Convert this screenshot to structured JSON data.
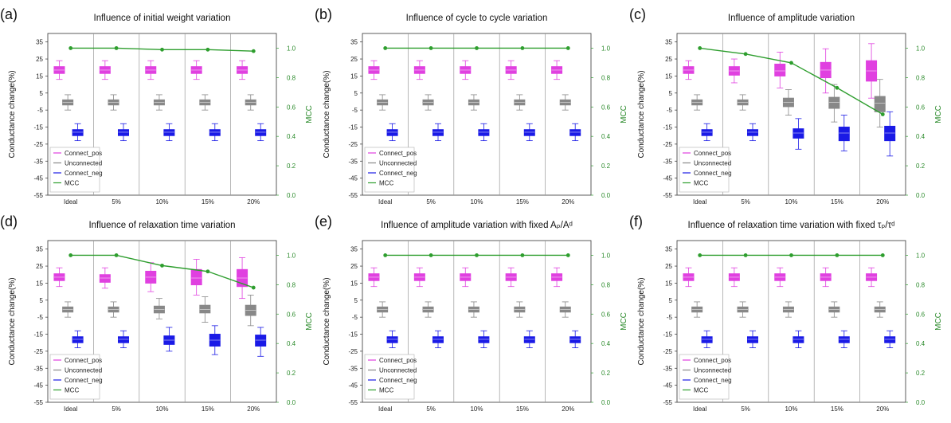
{
  "colors": {
    "connect_pos": "#e040e0",
    "unconnected": "#888888",
    "connect_neg": "#1a1ae6",
    "mcc": "#2e9e2e",
    "axis": "#333333",
    "mcc_axis": "#2e9e2e"
  },
  "shared": {
    "y_axis_label": "Conductance change(%)",
    "y2_axis_label": "MCC",
    "categories": [
      "Ideal",
      "5%",
      "10%",
      "15%",
      "20%"
    ],
    "legend": [
      "Connect_pos",
      "Unconnected",
      "Connect_neg",
      "MCC"
    ],
    "yticks": [
      "35",
      "25",
      "15",
      "5",
      "-5",
      "-15",
      "-25",
      "-35",
      "-45",
      "-55"
    ],
    "y2ticks": [
      "1.0",
      "0.8",
      "0.6",
      "0.4",
      "0.2",
      "0.0"
    ]
  },
  "chart_data": [
    {
      "type": "box",
      "panel_label": "(a)",
      "title": "Influence of initial weight variation",
      "ylim": [
        -55,
        40
      ],
      "y2lim": [
        0,
        1.1
      ],
      "legend_placement": "lower-left",
      "mcc": [
        1.0,
        1.0,
        0.99,
        0.99,
        0.98
      ],
      "series": [
        {
          "name": "Connect_pos",
          "boxes": [
            {
              "q1": 16.5,
              "q3": 20.5,
              "med": 18.5,
              "lo": 13,
              "hi": 24
            },
            {
              "q1": 16.5,
              "q3": 20.5,
              "med": 18.5,
              "lo": 13,
              "hi": 24
            },
            {
              "q1": 16.5,
              "q3": 20.5,
              "med": 18.5,
              "lo": 13,
              "hi": 24
            },
            {
              "q1": 16.5,
              "q3": 20.5,
              "med": 18.5,
              "lo": 13,
              "hi": 24
            },
            {
              "q1": 16.5,
              "q3": 20.5,
              "med": 18.5,
              "lo": 13,
              "hi": 24
            }
          ]
        },
        {
          "name": "Unconnected",
          "boxes": [
            {
              "q1": -2,
              "q3": 1,
              "med": -0.5,
              "lo": -5,
              "hi": 4
            },
            {
              "q1": -2,
              "q3": 1,
              "med": -0.5,
              "lo": -5,
              "hi": 4
            },
            {
              "q1": -2,
              "q3": 1,
              "med": -0.5,
              "lo": -5,
              "hi": 4
            },
            {
              "q1": -2,
              "q3": 1,
              "med": -0.5,
              "lo": -5,
              "hi": 4
            },
            {
              "q1": -2,
              "q3": 1,
              "med": -0.5,
              "lo": -5,
              "hi": 4
            }
          ]
        },
        {
          "name": "Connect_neg",
          "boxes": [
            {
              "q1": -20,
              "q3": -16.5,
              "med": -18,
              "lo": -23,
              "hi": -13
            },
            {
              "q1": -20,
              "q3": -16.5,
              "med": -18,
              "lo": -23,
              "hi": -13
            },
            {
              "q1": -20,
              "q3": -16.5,
              "med": -18,
              "lo": -23,
              "hi": -13
            },
            {
              "q1": -20,
              "q3": -16.5,
              "med": -18,
              "lo": -23,
              "hi": -13
            },
            {
              "q1": -20,
              "q3": -16.5,
              "med": -18,
              "lo": -23,
              "hi": -13
            }
          ]
        }
      ]
    },
    {
      "type": "box",
      "panel_label": "(b)",
      "title": "Influence of cycle to cycle variation",
      "ylim": [
        -55,
        40
      ],
      "y2lim": [
        0,
        1.1
      ],
      "legend_placement": "lower-left",
      "mcc": [
        1.0,
        1.0,
        1.0,
        1.0,
        1.0
      ],
      "series": [
        {
          "name": "Connect_pos",
          "boxes": [
            {
              "q1": 16.5,
              "q3": 20.5,
              "med": 18.5,
              "lo": 13,
              "hi": 24
            },
            {
              "q1": 16.5,
              "q3": 20.5,
              "med": 18.5,
              "lo": 13,
              "hi": 24
            },
            {
              "q1": 16.5,
              "q3": 20.5,
              "med": 18.5,
              "lo": 13,
              "hi": 24
            },
            {
              "q1": 16.5,
              "q3": 20.5,
              "med": 18.5,
              "lo": 13,
              "hi": 24
            },
            {
              "q1": 16.5,
              "q3": 20.5,
              "med": 18.5,
              "lo": 13,
              "hi": 24
            }
          ]
        },
        {
          "name": "Unconnected",
          "boxes": [
            {
              "q1": -2,
              "q3": 1,
              "med": -0.5,
              "lo": -5,
              "hi": 4
            },
            {
              "q1": -2,
              "q3": 1,
              "med": -0.5,
              "lo": -5,
              "hi": 4
            },
            {
              "q1": -2,
              "q3": 1,
              "med": -0.5,
              "lo": -5,
              "hi": 4
            },
            {
              "q1": -2,
              "q3": 1,
              "med": -0.5,
              "lo": -5,
              "hi": 4
            },
            {
              "q1": -2,
              "q3": 1,
              "med": -0.5,
              "lo": -5,
              "hi": 4
            }
          ]
        },
        {
          "name": "Connect_neg",
          "boxes": [
            {
              "q1": -20,
              "q3": -16.5,
              "med": -18,
              "lo": -23,
              "hi": -13
            },
            {
              "q1": -20,
              "q3": -16.5,
              "med": -18,
              "lo": -23,
              "hi": -13
            },
            {
              "q1": -20,
              "q3": -16.5,
              "med": -18,
              "lo": -23,
              "hi": -13
            },
            {
              "q1": -20,
              "q3": -16.5,
              "med": -18,
              "lo": -23,
              "hi": -13
            },
            {
              "q1": -20,
              "q3": -16.5,
              "med": -18,
              "lo": -23,
              "hi": -13
            }
          ]
        }
      ]
    },
    {
      "type": "box",
      "panel_label": "(c)",
      "title": "Influence of amplitude variation",
      "ylim": [
        -55,
        40
      ],
      "y2lim": [
        0,
        1.1
      ],
      "legend_placement": "lower-left",
      "mcc": [
        1.0,
        0.96,
        0.9,
        0.73,
        0.55
      ],
      "series": [
        {
          "name": "Connect_pos",
          "boxes": [
            {
              "q1": 16.5,
              "q3": 20.5,
              "med": 18.5,
              "lo": 13,
              "hi": 24
            },
            {
              "q1": 15.5,
              "q3": 20.5,
              "med": 18,
              "lo": 11,
              "hi": 25
            },
            {
              "q1": 15,
              "q3": 22,
              "med": 18,
              "lo": 8,
              "hi": 29
            },
            {
              "q1": 14,
              "q3": 23,
              "med": 18.5,
              "lo": 5,
              "hi": 31
            },
            {
              "q1": 12,
              "q3": 24,
              "med": 18,
              "lo": 2,
              "hi": 34
            }
          ]
        },
        {
          "name": "Unconnected",
          "boxes": [
            {
              "q1": -2,
              "q3": 1,
              "med": -0.5,
              "lo": -5,
              "hi": 4
            },
            {
              "q1": -2,
              "q3": 1,
              "med": -0.5,
              "lo": -5,
              "hi": 4
            },
            {
              "q1": -3,
              "q3": 2,
              "med": -0.5,
              "lo": -8,
              "hi": 7
            },
            {
              "q1": -4,
              "q3": 2.5,
              "med": -0.5,
              "lo": -12,
              "hi": 10
            },
            {
              "q1": -6,
              "q3": 3,
              "med": -1,
              "lo": -15,
              "hi": 13
            }
          ]
        },
        {
          "name": "Connect_neg",
          "boxes": [
            {
              "q1": -20,
              "q3": -16.5,
              "med": -18,
              "lo": -23,
              "hi": -13
            },
            {
              "q1": -20,
              "q3": -16.5,
              "med": -18,
              "lo": -23,
              "hi": -13
            },
            {
              "q1": -21.5,
              "q3": -16,
              "med": -18.5,
              "lo": -28,
              "hi": -10
            },
            {
              "q1": -23,
              "q3": -15,
              "med": -18.5,
              "lo": -29,
              "hi": -8
            },
            {
              "q1": -23,
              "q3": -14.5,
              "med": -18.5,
              "lo": -32,
              "hi": -6
            }
          ]
        }
      ]
    },
    {
      "type": "box",
      "panel_label": "(d)",
      "title": "Influence of relaxation time variation",
      "ylim": [
        -55,
        40
      ],
      "y2lim": [
        0,
        1.1
      ],
      "legend_placement": "lower-left",
      "mcc": [
        1.0,
        1.0,
        0.93,
        0.89,
        0.78
      ],
      "series": [
        {
          "name": "Connect_pos",
          "boxes": [
            {
              "q1": 16.5,
              "q3": 20.5,
              "med": 18.5,
              "lo": 13,
              "hi": 24
            },
            {
              "q1": 15.5,
              "q3": 20,
              "med": 18,
              "lo": 12,
              "hi": 24
            },
            {
              "q1": 15,
              "q3": 22,
              "med": 18.5,
              "lo": 10,
              "hi": 27
            },
            {
              "q1": 14,
              "q3": 23,
              "med": 18,
              "lo": 8,
              "hi": 29
            },
            {
              "q1": 13,
              "q3": 23,
              "med": 18,
              "lo": 6,
              "hi": 30
            }
          ]
        },
        {
          "name": "Unconnected",
          "boxes": [
            {
              "q1": -2,
              "q3": 1,
              "med": -0.5,
              "lo": -5,
              "hi": 4
            },
            {
              "q1": -2,
              "q3": 1,
              "med": -0.5,
              "lo": -5,
              "hi": 4
            },
            {
              "q1": -2.5,
              "q3": 1.5,
              "med": -0.5,
              "lo": -6,
              "hi": 6
            },
            {
              "q1": -2.5,
              "q3": 2,
              "med": -0.5,
              "lo": -8,
              "hi": 7
            },
            {
              "q1": -4,
              "q3": 2,
              "med": -1,
              "lo": -10,
              "hi": 8
            }
          ]
        },
        {
          "name": "Connect_neg",
          "boxes": [
            {
              "q1": -20,
              "q3": -16.5,
              "med": -18,
              "lo": -23,
              "hi": -13
            },
            {
              "q1": -20,
              "q3": -16.5,
              "med": -18,
              "lo": -23,
              "hi": -13
            },
            {
              "q1": -21,
              "q3": -16,
              "med": -18.5,
              "lo": -25,
              "hi": -11
            },
            {
              "q1": -22,
              "q3": -15,
              "med": -18.5,
              "lo": -27,
              "hi": -10
            },
            {
              "q1": -22,
              "q3": -15.5,
              "med": -18.5,
              "lo": -28,
              "hi": -11
            }
          ]
        }
      ]
    },
    {
      "type": "box",
      "panel_label": "(e)",
      "title": "Influence of amplitude variation with fixed Aₚ/Aᵈ",
      "ylim": [
        -55,
        40
      ],
      "y2lim": [
        0,
        1.1
      ],
      "legend_placement": "lower-left",
      "mcc": [
        1.0,
        1.0,
        1.0,
        1.0,
        1.0
      ],
      "series": [
        {
          "name": "Connect_pos",
          "boxes": [
            {
              "q1": 16.5,
              "q3": 20.5,
              "med": 18.5,
              "lo": 13,
              "hi": 24
            },
            {
              "q1": 16.5,
              "q3": 20.5,
              "med": 18.5,
              "lo": 13,
              "hi": 24
            },
            {
              "q1": 16.5,
              "q3": 20.5,
              "med": 18.5,
              "lo": 13,
              "hi": 24
            },
            {
              "q1": 16.5,
              "q3": 20.5,
              "med": 18.5,
              "lo": 13,
              "hi": 24
            },
            {
              "q1": 16.5,
              "q3": 20.5,
              "med": 18.5,
              "lo": 13,
              "hi": 24
            }
          ]
        },
        {
          "name": "Unconnected",
          "boxes": [
            {
              "q1": -2,
              "q3": 1,
              "med": -0.5,
              "lo": -5,
              "hi": 4
            },
            {
              "q1": -2,
              "q3": 1,
              "med": -0.5,
              "lo": -5,
              "hi": 4
            },
            {
              "q1": -2,
              "q3": 1,
              "med": -0.5,
              "lo": -5,
              "hi": 4
            },
            {
              "q1": -2,
              "q3": 1,
              "med": -0.5,
              "lo": -5,
              "hi": 4
            },
            {
              "q1": -2,
              "q3": 1,
              "med": -0.5,
              "lo": -5,
              "hi": 4
            }
          ]
        },
        {
          "name": "Connect_neg",
          "boxes": [
            {
              "q1": -20,
              "q3": -16.5,
              "med": -18,
              "lo": -23,
              "hi": -13
            },
            {
              "q1": -20,
              "q3": -16.5,
              "med": -18,
              "lo": -23,
              "hi": -13
            },
            {
              "q1": -20,
              "q3": -16.5,
              "med": -18,
              "lo": -23,
              "hi": -13
            },
            {
              "q1": -20,
              "q3": -16.5,
              "med": -18,
              "lo": -23,
              "hi": -13
            },
            {
              "q1": -20,
              "q3": -16.5,
              "med": -18,
              "lo": -23,
              "hi": -13
            }
          ]
        }
      ]
    },
    {
      "type": "box",
      "panel_label": "(f)",
      "title": "Influence of relaxation time variation with fixed τₚ/τᵈ",
      "ylim": [
        -55,
        40
      ],
      "y2lim": [
        0,
        1.1
      ],
      "legend_placement": "lower-left",
      "mcc": [
        1.0,
        1.0,
        1.0,
        1.0,
        1.0
      ],
      "series": [
        {
          "name": "Connect_pos",
          "boxes": [
            {
              "q1": 16.5,
              "q3": 20.5,
              "med": 18.5,
              "lo": 13,
              "hi": 24
            },
            {
              "q1": 16.5,
              "q3": 20.5,
              "med": 18.5,
              "lo": 13,
              "hi": 24
            },
            {
              "q1": 16.5,
              "q3": 20.5,
              "med": 18.5,
              "lo": 13,
              "hi": 24
            },
            {
              "q1": 16.5,
              "q3": 20.5,
              "med": 18.5,
              "lo": 13,
              "hi": 24
            },
            {
              "q1": 16.5,
              "q3": 20.5,
              "med": 18.5,
              "lo": 13,
              "hi": 24
            }
          ]
        },
        {
          "name": "Unconnected",
          "boxes": [
            {
              "q1": -2,
              "q3": 1,
              "med": -0.5,
              "lo": -5,
              "hi": 4
            },
            {
              "q1": -2,
              "q3": 1,
              "med": -0.5,
              "lo": -5,
              "hi": 4
            },
            {
              "q1": -2,
              "q3": 1,
              "med": -0.5,
              "lo": -5,
              "hi": 4
            },
            {
              "q1": -2,
              "q3": 1,
              "med": -0.5,
              "lo": -5,
              "hi": 4
            },
            {
              "q1": -2,
              "q3": 1,
              "med": -0.5,
              "lo": -5,
              "hi": 4
            }
          ]
        },
        {
          "name": "Connect_neg",
          "boxes": [
            {
              "q1": -20,
              "q3": -16.5,
              "med": -18,
              "lo": -23,
              "hi": -13
            },
            {
              "q1": -20,
              "q3": -16.5,
              "med": -18,
              "lo": -23,
              "hi": -13
            },
            {
              "q1": -20,
              "q3": -16.5,
              "med": -18,
              "lo": -23,
              "hi": -13
            },
            {
              "q1": -20,
              "q3": -16.5,
              "med": -18,
              "lo": -23,
              "hi": -13
            },
            {
              "q1": -20,
              "q3": -16.5,
              "med": -18,
              "lo": -23,
              "hi": -13
            }
          ]
        }
      ]
    }
  ]
}
